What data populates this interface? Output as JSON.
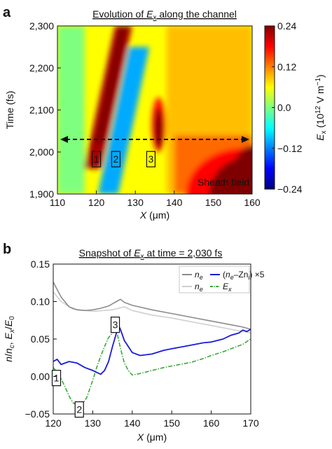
{
  "chart_data": [
    {
      "panel": "a",
      "type": "heatmap",
      "title": "Evolution of E_x along the channel",
      "title_parts": [
        "Evolution of ",
        "E",
        "x",
        " along the channel"
      ],
      "xlabel_parts": [
        "X",
        " (μm)"
      ],
      "ylabel": "Time (fs)",
      "xlim": [
        110,
        160
      ],
      "ylim": [
        1900,
        2300
      ],
      "x_ticks": [
        110,
        120,
        130,
        140,
        150,
        160
      ],
      "y_ticks": [
        1900,
        2000,
        2100,
        2200,
        2300
      ],
      "y_tick_labels": [
        "1,900",
        "2,000",
        "2,100",
        "2,200",
        "2,300"
      ],
      "colorbar": {
        "label_parts": [
          "E",
          "x",
          " (10",
          "12",
          " V m",
          "−1",
          ")"
        ],
        "range": [
          -0.24,
          0.24
        ],
        "ticks": [
          -0.24,
          -0.12,
          0.0,
          0.12,
          0.24
        ],
        "tick_labels": [
          "−0.24",
          "−0.12",
          "0.0",
          "0.12",
          "0.24"
        ],
        "colormap": [
          "#00007f",
          "#0000ff",
          "#007fff",
          "#00ffff",
          "#7fff7f",
          "#ffff00",
          "#ff7f00",
          "#ff0000",
          "#7f0000"
        ]
      },
      "features": [
        {
          "kind": "positive-band",
          "x_at_ymin": 119,
          "x_at_ymax": 127,
          "ymin": 1960,
          "ymax": 2300,
          "value": 0.22
        },
        {
          "kind": "negative-band",
          "x_at_ymin": 123,
          "x_at_ymax": 131,
          "ymin": 1900,
          "ymax": 2250,
          "value": -0.1
        },
        {
          "kind": "positive-spot",
          "x": 136,
          "ymin": 2000,
          "ymax": 2130,
          "value": 0.24
        },
        {
          "kind": "sheath",
          "xmin": 145,
          "xmax": 160,
          "ymin": 1900,
          "ymax": 1990,
          "value": 0.24
        }
      ],
      "snapshot_time": 2030,
      "markers": [
        {
          "label": "1",
          "x": 120,
          "y": 1983
        },
        {
          "label": "2",
          "x": 125,
          "y": 1983
        },
        {
          "label": "3",
          "x": 134,
          "y": 1983
        }
      ],
      "annotation": "Sheath field"
    },
    {
      "panel": "b",
      "type": "line",
      "title": "Snapshot of E_x at time = 2,030 fs",
      "title_parts": [
        "Snapshot of ",
        "E",
        "x",
        " at time = 2,030 fs"
      ],
      "xlabel_parts": [
        "X",
        " (μm)"
      ],
      "ylabel_parts": [
        "n",
        "/",
        "n",
        "c",
        ", ",
        "E",
        "x",
        "/",
        "E",
        "0"
      ],
      "xlim": [
        120,
        170
      ],
      "ylim": [
        -0.05,
        0.15
      ],
      "x_ticks": [
        120,
        130,
        140,
        150,
        160,
        170
      ],
      "y_ticks": [
        -0.05,
        0.0,
        0.05,
        0.1,
        0.15
      ],
      "y_tick_labels": [
        "−0.05",
        "0.00",
        "0.05",
        "0.10",
        "0.15"
      ],
      "legend_position": "top-right",
      "series": [
        {
          "name": "n_e",
          "legend_parts": [
            "n",
            "e"
          ],
          "color": "#8c8c8c",
          "style": "solid",
          "x": [
            120,
            121,
            122,
            124,
            126,
            128,
            130,
            132,
            134,
            135,
            136,
            137,
            138,
            140,
            145,
            150,
            155,
            160,
            165,
            168,
            170
          ],
          "y": [
            0.126,
            0.116,
            0.106,
            0.093,
            0.089,
            0.088,
            0.089,
            0.091,
            0.094,
            0.097,
            0.1,
            0.103,
            0.099,
            0.095,
            0.089,
            0.084,
            0.079,
            0.074,
            0.069,
            0.066,
            0.063
          ]
        },
        {
          "name": "n_e",
          "legend_parts": [
            "n",
            "e"
          ],
          "color": "#cfcfcf",
          "style": "solid",
          "x": [
            120,
            122,
            125,
            130,
            135,
            138,
            140,
            145,
            150,
            155,
            160,
            165,
            170
          ],
          "y": [
            0.113,
            0.1,
            0.09,
            0.087,
            0.089,
            0.093,
            0.088,
            0.082,
            0.078,
            0.073,
            0.068,
            0.063,
            0.058
          ]
        },
        {
          "name": "(n_e–Zn_i) ×5",
          "legend_parts": [
            "(",
            "n",
            "e",
            "–Zn",
            "i",
            ") ×5"
          ],
          "color": "#1a1adb",
          "style": "solid",
          "x": [
            120,
            121,
            122,
            124,
            126,
            128,
            130,
            132,
            133,
            134,
            135,
            136,
            136.5,
            137,
            138,
            140,
            142,
            145,
            148,
            150,
            153,
            155,
            158,
            160,
            163,
            165,
            167,
            168,
            169,
            170
          ],
          "y": [
            0.02,
            0.023,
            0.016,
            0.02,
            0.018,
            0.012,
            0.008,
            0.003,
            0.008,
            0.02,
            0.04,
            0.058,
            0.068,
            0.063,
            0.048,
            0.032,
            0.028,
            0.03,
            0.035,
            0.037,
            0.04,
            0.042,
            0.045,
            0.046,
            0.05,
            0.055,
            0.058,
            0.062,
            0.06,
            0.063
          ]
        },
        {
          "name": "E_x",
          "legend_parts": [
            "E",
            "x"
          ],
          "color": "#3aa838",
          "style": "dashdot",
          "x": [
            120,
            121,
            122,
            123,
            124,
            125,
            126,
            126.7,
            127.5,
            128.5,
            130,
            131,
            132,
            133,
            134,
            135,
            135.7,
            136.3,
            137,
            138,
            139,
            140,
            142,
            145,
            148,
            150,
            152,
            155,
            158,
            160,
            163,
            165,
            168,
            170
          ],
          "y": [
            0.012,
            0.006,
            -0.003,
            -0.014,
            -0.026,
            -0.035,
            -0.038,
            -0.039,
            -0.036,
            -0.028,
            -0.005,
            0.012,
            0.027,
            0.04,
            0.052,
            0.058,
            0.061,
            0.055,
            0.038,
            0.018,
            0.008,
            0.002,
            0.004,
            0.008,
            0.012,
            0.014,
            0.016,
            0.019,
            0.024,
            0.028,
            0.033,
            0.037,
            0.043,
            0.05
          ]
        }
      ],
      "markers": [
        {
          "label": "1",
          "x": 120.8,
          "y": -0.002
        },
        {
          "label": "2",
          "x": 126.6,
          "y": -0.044
        },
        {
          "label": "3",
          "x": 135.7,
          "y": 0.069
        }
      ]
    }
  ]
}
